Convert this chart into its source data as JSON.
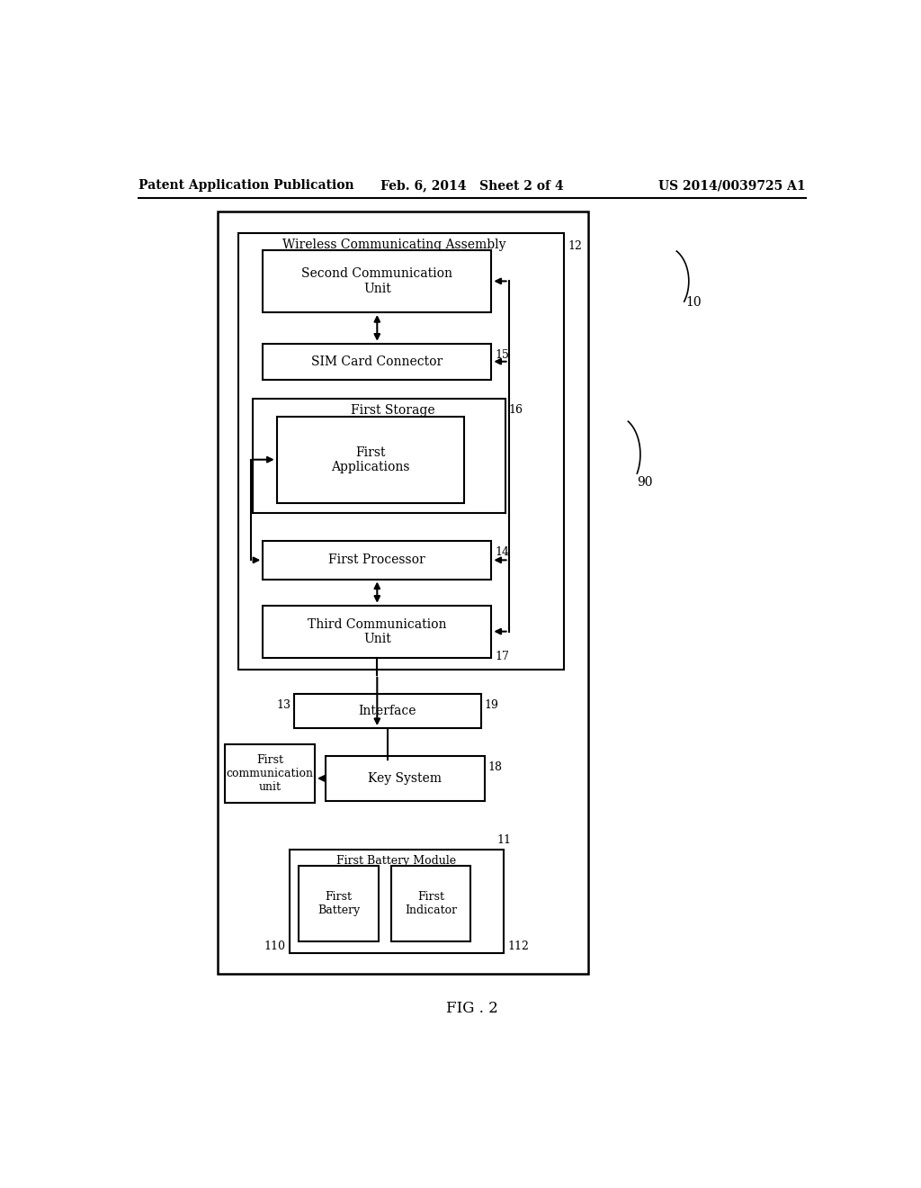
{
  "bg_color": "#ffffff",
  "line_color": "#000000",
  "header_left": "Patent Application Publication",
  "header_mid": "Feb. 6, 2014   Sheet 2 of 4",
  "header_right": "US 2014/0039725 A1",
  "fig_label": "FIG . 2",
  "label_fontsize": 10,
  "small_fontsize": 9,
  "bold_fontsize": 10
}
